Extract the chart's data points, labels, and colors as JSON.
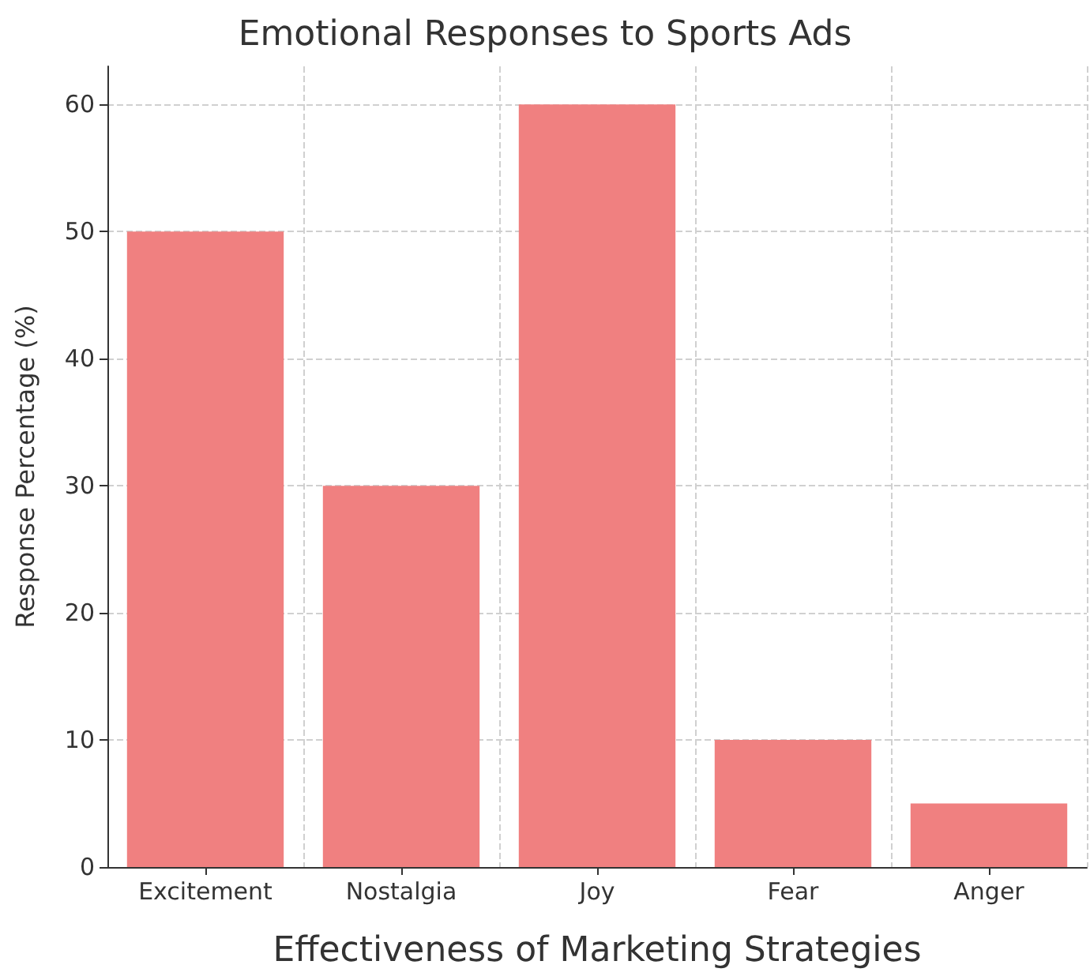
{
  "chart_data": {
    "type": "bar",
    "title": "Emotional Responses to Sports Ads",
    "xlabel": "Effectiveness of Marketing Strategies",
    "ylabel": "Response Percentage (%)",
    "categories": [
      "Excitement",
      "Nostalgia",
      "Joy",
      "Fear",
      "Anger"
    ],
    "values": [
      50,
      30,
      60,
      10,
      5
    ],
    "color": "#f08080",
    "ylim": [
      0,
      63
    ],
    "yticks": [
      0,
      10,
      20,
      30,
      40,
      50,
      60
    ],
    "grid": true
  }
}
